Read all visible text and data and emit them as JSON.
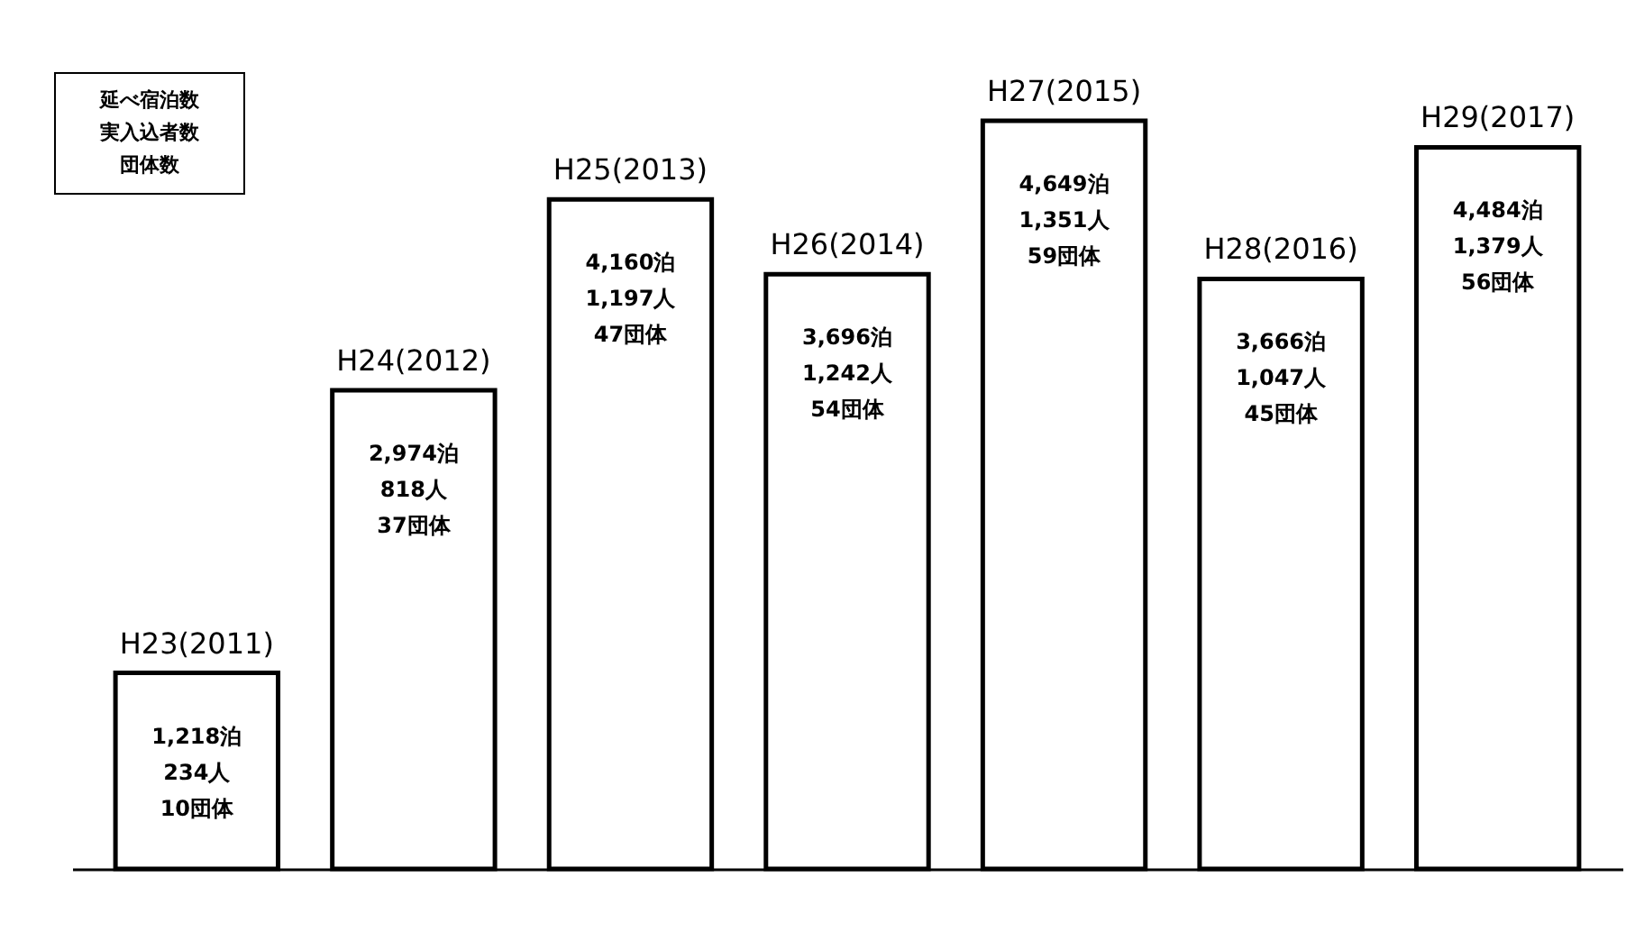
{
  "chart_data": {
    "type": "bar",
    "categories": [
      "H23(2011)",
      "H24(2012)",
      "H25(2013)",
      "H26(2014)",
      "H27(2015)",
      "H28(2016)",
      "H29(2017)"
    ],
    "values": [
      1218,
      2974,
      4160,
      3696,
      4649,
      3666,
      4484
    ],
    "color": "#ffffff",
    "value_labels": [
      "1,218泊\n234人\n10団体",
      "2,974泊\n818人\n37団体",
      "4,160泊\n1,197人\n47団体",
      "3,696泊\n1,242人\n54団体",
      "4,649泊\n1,351人\n59団体",
      "3,666泊\n1,047人\n45団体",
      "4,484泊\n1,379人\n56団体"
    ],
    "annotations": [
      "延べ宿泊数",
      "実入込者数",
      "団体数"
    ]
  }
}
